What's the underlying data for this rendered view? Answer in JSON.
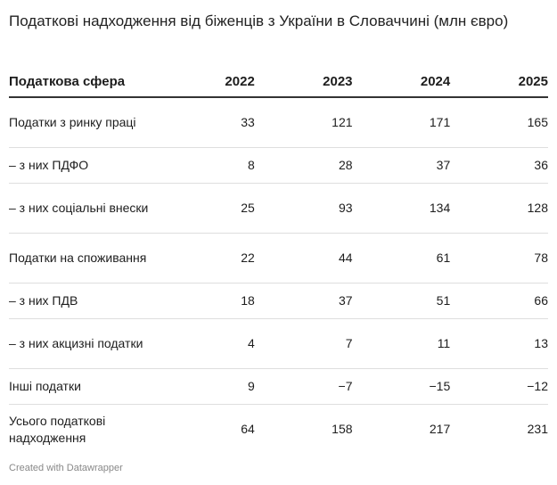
{
  "title": "Податкові надходження від біженців з України в Словаччині (млн євро)",
  "table": {
    "headers": [
      "Податкова сфера",
      "2022",
      "2023",
      "2024",
      "2025"
    ],
    "rows": [
      {
        "label": "Податки з ринку праці",
        "values": [
          "33",
          "121",
          "171",
          "165"
        ]
      },
      {
        "label": "– з них ПДФО",
        "values": [
          "8",
          "28",
          "37",
          "36"
        ]
      },
      {
        "label": "– з них соціальні внески",
        "values": [
          "25",
          "93",
          "134",
          "128"
        ]
      },
      {
        "label": "Податки на споживання",
        "values": [
          "22",
          "44",
          "61",
          "78"
        ]
      },
      {
        "label": "– з них ПДВ",
        "values": [
          "18",
          "37",
          "51",
          "66"
        ]
      },
      {
        "label": "– з них акцизні податки",
        "values": [
          "4",
          "7",
          "11",
          "13"
        ]
      },
      {
        "label": "Інші податки",
        "values": [
          "9",
          "−7",
          "−15",
          "−12"
        ]
      },
      {
        "label": "Усього податкові надходження",
        "values": [
          "64",
          "158",
          "217",
          "231"
        ]
      }
    ]
  },
  "footer": "Created with Datawrapper"
}
